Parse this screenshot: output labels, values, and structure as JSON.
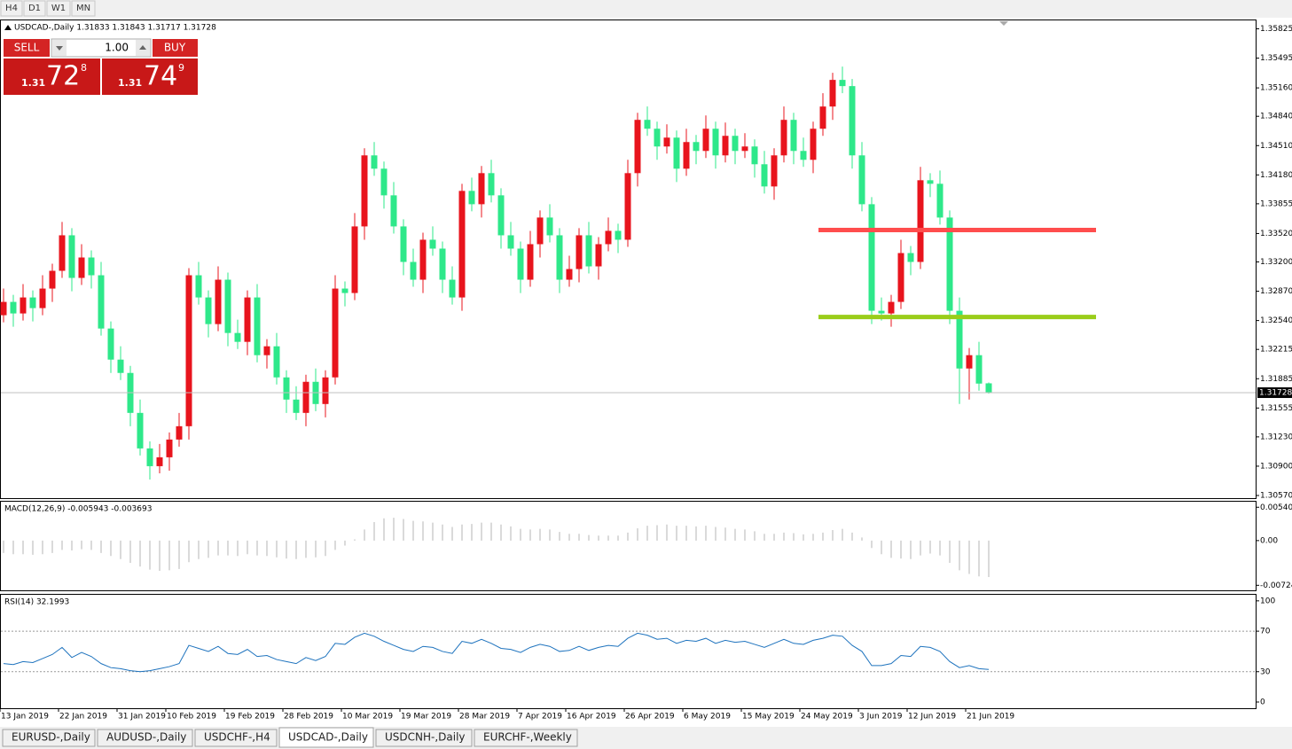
{
  "timeframes": [
    "H4",
    "D1",
    "W1",
    "MN"
  ],
  "trade_panel": {
    "sell": "SELL",
    "buy": "BUY",
    "volume": "1.00",
    "bid": {
      "big": "1.31",
      "pips": "72",
      "point": "8"
    },
    "ask": {
      "big": "1.31",
      "pips": "74",
      "point": "9"
    }
  },
  "chart_data": [
    {
      "type": "candlestick",
      "title": "USDCAD-,Daily 1.31833 1.31843 1.31717 1.31728",
      "x": [
        "13 Jan 2019",
        null,
        null,
        null,
        null,
        null,
        "22 Jan 2019",
        null,
        null,
        null,
        null,
        null,
        "31 Jan 2019",
        null,
        null,
        null,
        null,
        "10 Feb 2019",
        null,
        null,
        null,
        null,
        null,
        "19 Feb 2019",
        null,
        null,
        null,
        null,
        null,
        "28 Feb 2019",
        null,
        null,
        null,
        null,
        null,
        "10 Mar 2019",
        null,
        null,
        null,
        null,
        null,
        "19 Mar 2019",
        null,
        null,
        null,
        null,
        null,
        "28 Mar 2019",
        null,
        null,
        null,
        null,
        null,
        "7 Apr 2019",
        null,
        null,
        null,
        null,
        "16 Apr 2019",
        null,
        null,
        null,
        null,
        null,
        "26 Apr 2019",
        null,
        null,
        null,
        null,
        null,
        "6 May 2019",
        null,
        null,
        null,
        null,
        null,
        "15 May 2019",
        null,
        null,
        null,
        null,
        null,
        "24 May 2019",
        null,
        null,
        null,
        null,
        null,
        "3 Jun 2019",
        null,
        null,
        null,
        null,
        "12 Jun 2019",
        null,
        null,
        null,
        null,
        null,
        "21 Jun 2019",
        null,
        null
      ],
      "open": [
        1.326,
        1.3275,
        1.3262,
        1.328,
        1.3268,
        1.329,
        1.331,
        1.335,
        1.3302,
        1.3325,
        1.3305,
        1.3245,
        1.321,
        1.3195,
        1.315,
        1.311,
        1.309,
        1.31,
        1.312,
        1.3135,
        1.3305,
        1.328,
        1.325,
        1.33,
        1.324,
        1.323,
        1.328,
        1.3215,
        1.3225,
        1.319,
        1.3165,
        1.315,
        1.3185,
        1.316,
        1.319,
        1.329,
        1.3285,
        1.336,
        1.344,
        1.3425,
        1.3395,
        1.336,
        1.332,
        1.33,
        1.3345,
        1.3335,
        1.33,
        1.328,
        1.34,
        1.3385,
        1.342,
        1.3395,
        1.335,
        1.3335,
        1.33,
        1.334,
        1.337,
        1.335,
        1.33,
        1.3312,
        1.335,
        1.3315,
        1.334,
        1.3355,
        1.3345,
        1.342,
        1.348,
        1.347,
        1.345,
        1.346,
        1.3425,
        1.3455,
        1.3445,
        1.347,
        1.344,
        1.3462,
        1.3445,
        1.345,
        1.343,
        1.3405,
        1.344,
        1.348,
        1.3445,
        1.3435,
        1.347,
        1.3495,
        1.3525,
        1.3518,
        1.344,
        1.3385,
        1.3265,
        1.3262,
        1.3275,
        1.333,
        1.332,
        1.3412,
        1.3408,
        1.337,
        1.3265,
        1.32,
        1.3215,
        1.31833
      ],
      "high": [
        1.329,
        1.3283,
        1.3295,
        1.3288,
        1.3305,
        1.3318,
        1.3365,
        1.3358,
        1.334,
        1.3333,
        1.332,
        1.3253,
        1.3225,
        1.3203,
        1.3165,
        1.3118,
        1.3115,
        1.3128,
        1.315,
        1.3313,
        1.332,
        1.3288,
        1.3315,
        1.3308,
        1.3255,
        1.3288,
        1.3295,
        1.3233,
        1.324,
        1.3198,
        1.318,
        1.3193,
        1.32,
        1.3198,
        1.3305,
        1.3298,
        1.3375,
        1.3448,
        1.3455,
        1.3433,
        1.341,
        1.3368,
        1.3335,
        1.3353,
        1.336,
        1.3343,
        1.3315,
        1.3408,
        1.3415,
        1.3428,
        1.3435,
        1.3403,
        1.3365,
        1.3343,
        1.3355,
        1.3378,
        1.3385,
        1.3358,
        1.3327,
        1.3358,
        1.3365,
        1.3348,
        1.337,
        1.3363,
        1.3435,
        1.3488,
        1.3495,
        1.3478,
        1.3475,
        1.3468,
        1.347,
        1.3463,
        1.3485,
        1.3478,
        1.3477,
        1.347,
        1.3465,
        1.3458,
        1.3445,
        1.3448,
        1.3495,
        1.3488,
        1.346,
        1.3478,
        1.351,
        1.3533,
        1.354,
        1.3526,
        1.3455,
        1.3393,
        1.328,
        1.3283,
        1.3345,
        1.3338,
        1.3427,
        1.342,
        1.3423,
        1.3378,
        1.328,
        1.3223,
        1.323,
        1.31843
      ],
      "low": [
        1.3252,
        1.3247,
        1.3254,
        1.3253,
        1.326,
        1.3275,
        1.3302,
        1.3287,
        1.3294,
        1.329,
        1.3237,
        1.3195,
        1.3187,
        1.3135,
        1.3102,
        1.3075,
        1.3082,
        1.3085,
        1.3112,
        1.312,
        1.3272,
        1.3235,
        1.3242,
        1.3225,
        1.3222,
        1.3215,
        1.3207,
        1.32,
        1.3182,
        1.315,
        1.3142,
        1.3135,
        1.3152,
        1.3145,
        1.3182,
        1.327,
        1.3277,
        1.3345,
        1.3417,
        1.338,
        1.3352,
        1.3305,
        1.3292,
        1.3285,
        1.3327,
        1.3285,
        1.3272,
        1.3265,
        1.3377,
        1.337,
        1.3387,
        1.3335,
        1.3327,
        1.3285,
        1.3292,
        1.3325,
        1.3342,
        1.3285,
        1.3292,
        1.3297,
        1.3307,
        1.33,
        1.3332,
        1.333,
        1.3337,
        1.3405,
        1.3462,
        1.3435,
        1.3442,
        1.341,
        1.3417,
        1.343,
        1.3437,
        1.3425,
        1.3432,
        1.343,
        1.3437,
        1.3415,
        1.3397,
        1.339,
        1.3432,
        1.343,
        1.3427,
        1.342,
        1.3462,
        1.348,
        1.351,
        1.3425,
        1.3377,
        1.325,
        1.3254,
        1.3247,
        1.3267,
        1.3305,
        1.3312,
        1.3393,
        1.3362,
        1.325,
        1.316,
        1.3165,
        1.3175,
        1.31717
      ],
      "close": [
        1.3275,
        1.3262,
        1.328,
        1.3268,
        1.329,
        1.331,
        1.335,
        1.3302,
        1.3325,
        1.3305,
        1.3245,
        1.321,
        1.3195,
        1.315,
        1.311,
        1.309,
        1.31,
        1.312,
        1.3135,
        1.3305,
        1.328,
        1.325,
        1.33,
        1.324,
        1.323,
        1.328,
        1.3215,
        1.3225,
        1.319,
        1.3165,
        1.315,
        1.3185,
        1.316,
        1.319,
        1.329,
        1.3285,
        1.336,
        1.344,
        1.3425,
        1.3395,
        1.336,
        1.332,
        1.33,
        1.3345,
        1.3335,
        1.33,
        1.328,
        1.34,
        1.3385,
        1.342,
        1.3395,
        1.335,
        1.3335,
        1.33,
        1.334,
        1.337,
        1.335,
        1.33,
        1.3312,
        1.335,
        1.3315,
        1.334,
        1.3355,
        1.3345,
        1.342,
        1.348,
        1.347,
        1.345,
        1.346,
        1.3425,
        1.3455,
        1.3445,
        1.347,
        1.344,
        1.3462,
        1.3445,
        1.345,
        1.343,
        1.3405,
        1.344,
        1.348,
        1.3445,
        1.3435,
        1.347,
        1.3495,
        1.3525,
        1.3518,
        1.344,
        1.3385,
        1.3265,
        1.3262,
        1.3275,
        1.333,
        1.332,
        1.3412,
        1.3408,
        1.337,
        1.3265,
        1.32,
        1.3215,
        1.3183,
        1.31728
      ],
      "up_color": "#e8141d",
      "down_color": "#2ee88a",
      "ylim": [
        1.3054,
        1.3592
      ],
      "yticks": [
        1.35825,
        1.35495,
        {
          "value": 1.3516,
          "label": "1.35160"
        },
        {
          "value": 1.3484,
          "label": "1.34840"
        },
        {
          "value": 1.3451,
          "label": "1.34510"
        },
        {
          "value": 1.3418,
          "label": "1.34180"
        },
        1.33855,
        {
          "value": 1.3352,
          "label": "1.33520"
        },
        {
          "value": 1.332,
          "label": "1.33200"
        },
        {
          "value": 1.3287,
          "label": "1.32870"
        },
        {
          "value": 1.3254,
          "label": "1.32540"
        },
        1.32215,
        1.31885,
        1.31555,
        {
          "value": 1.3123,
          "label": "1.31230"
        },
        {
          "value": 1.309,
          "label": "1.30900"
        },
        {
          "value": 1.3057,
          "label": "1.30570"
        }
      ],
      "current_price": 1.31728,
      "levels": [
        {
          "value": 1.3356,
          "color": "#ff4d4d"
        },
        {
          "value": 1.3258,
          "color": "#9acd1a"
        }
      ]
    },
    {
      "type": "bar",
      "title": "MACD(12,26,9) -0.005943 -0.003693",
      "values": [
        -0.002,
        -0.0022,
        -0.0022,
        -0.0023,
        -0.0022,
        -0.002,
        -0.0015,
        -0.0016,
        -0.0014,
        -0.0015,
        -0.002,
        -0.0025,
        -0.003,
        -0.0036,
        -0.0042,
        -0.0047,
        -0.0049,
        -0.0048,
        -0.0046,
        -0.0035,
        -0.003,
        -0.0028,
        -0.0024,
        -0.0024,
        -0.0025,
        -0.0022,
        -0.0024,
        -0.0025,
        -0.0027,
        -0.0029,
        -0.003,
        -0.0028,
        -0.0027,
        -0.0025,
        -0.0015,
        -0.0008,
        0.0002,
        0.0018,
        0.003,
        0.0036,
        0.0037,
        0.0035,
        0.0032,
        0.0031,
        0.0029,
        0.0026,
        0.0022,
        0.0026,
        0.0027,
        0.0029,
        0.0029,
        0.0026,
        0.0023,
        0.0019,
        0.0018,
        0.0019,
        0.0018,
        0.0014,
        0.0011,
        0.0011,
        0.0009,
        0.0008,
        0.0008,
        0.0008,
        0.0013,
        0.002,
        0.0024,
        0.0025,
        0.0026,
        0.0024,
        0.0024,
        0.0023,
        0.0024,
        0.0022,
        0.0021,
        0.0019,
        0.0018,
        0.0015,
        0.0011,
        0.0011,
        0.0013,
        0.0012,
        0.001,
        0.0011,
        0.0013,
        0.0017,
        0.0019,
        0.0013,
        0.0005,
        -0.0012,
        -0.0022,
        -0.0028,
        -0.0029,
        -0.003,
        -0.0024,
        -0.0021,
        -0.0024,
        -0.0036,
        -0.0048,
        -0.0054,
        -0.0058,
        -0.0059
      ],
      "color": "#b4b4b4",
      "ylim": [
        -0.0082,
        0.0063
      ],
      "yticks": [
        0.005402,
        {
          "value": 0,
          "label": "0.00"
        },
        -0.00724
      ]
    },
    {
      "type": "line",
      "title": "RSI(14) 32.1993",
      "values": [
        38,
        37,
        40,
        39,
        43,
        47,
        54,
        44,
        49,
        45,
        38,
        34,
        33,
        31,
        30,
        31,
        33,
        35,
        38,
        56,
        53,
        50,
        55,
        48,
        47,
        52,
        45,
        46,
        42,
        40,
        38,
        44,
        41,
        45,
        58,
        57,
        64,
        68,
        65,
        60,
        56,
        52,
        50,
        55,
        54,
        50,
        48,
        60,
        58,
        62,
        58,
        53,
        52,
        49,
        54,
        57,
        55,
        50,
        51,
        55,
        51,
        54,
        56,
        55,
        63,
        68,
        66,
        62,
        63,
        58,
        61,
        60,
        63,
        58,
        61,
        59,
        60,
        57,
        54,
        58,
        62,
        58,
        57,
        61,
        63,
        66,
        65,
        56,
        50,
        36,
        36,
        38,
        46,
        45,
        55,
        54,
        50,
        40,
        34,
        36,
        33,
        32.2
      ],
      "color": "#1e73be",
      "ylim": [
        -7,
        106
      ],
      "yticks": [
        100,
        70,
        30,
        0
      ],
      "levels": [
        70,
        30
      ]
    }
  ],
  "tabs": [
    "EURUSD-,Daily",
    "AUDUSD-,Daily",
    "USDCHF-,H4",
    "USDCAD-,Daily",
    "USDCNH-,Daily",
    "EURCHF-,Weekly"
  ],
  "active_tab": 3
}
